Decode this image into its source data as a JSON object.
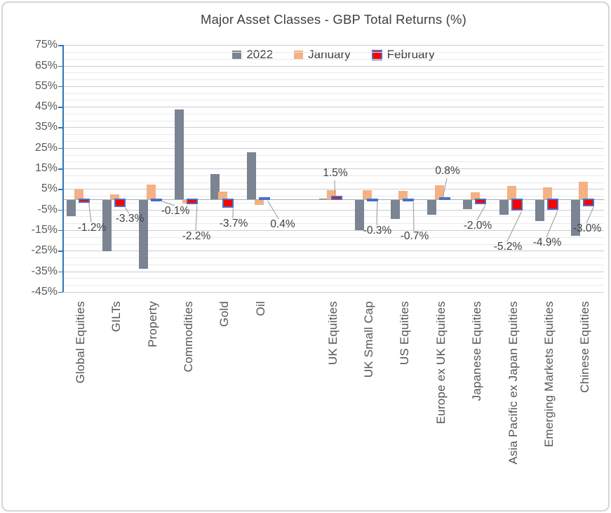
{
  "title": "Major Asset Classes - GBP Total Returns (%)",
  "legend": {
    "items": [
      "2022",
      "January",
      "February"
    ]
  },
  "colors": {
    "series_2022": "#7b8492",
    "series_january": "#f4b183",
    "series_february": "#ff0000",
    "february_border": "#4472c4",
    "axis_line": "#2e75b6",
    "grid_major": "#c9ccd1",
    "grid_minor": "#e9eaec",
    "zero_line": "#a8acb1",
    "leader_line": "#a6a6a6",
    "label_text": "#404040",
    "axis_text": "#595959"
  },
  "chart_data": {
    "type": "bar",
    "title": "Major Asset Classes - GBP Total Returns (%)",
    "categories": [
      "Global Equities",
      "GILTs",
      "Property",
      "Commodities",
      "Gold",
      "Oil",
      "",
      "UK Equities",
      "UK Small Cap",
      "US Equities",
      "Europe ex UK Equities",
      "Japanese Equities",
      "Asia Pacific ex Japan Equities",
      "Emerging Markets Equities",
      "Chinese Equities"
    ],
    "series": [
      {
        "name": "2022",
        "values": [
          -7.8,
          -24.8,
          -33.3,
          43.8,
          12.2,
          23.0,
          null,
          0.3,
          -14.7,
          -9.3,
          -7.3,
          -4.4,
          -7.3,
          -10.1,
          -17.5
        ]
      },
      {
        "name": "January",
        "values": [
          4.7,
          2.4,
          7.3,
          -1.8,
          3.8,
          -2.4,
          null,
          4.3,
          4.6,
          4.0,
          7.0,
          3.5,
          6.5,
          5.7,
          8.6
        ]
      },
      {
        "name": "February",
        "values": [
          -1.2,
          -3.3,
          -0.1,
          -2.2,
          -3.7,
          0.4,
          null,
          1.5,
          -0.3,
          -0.7,
          0.8,
          -2.0,
          -5.2,
          -4.9,
          -3.0
        ]
      }
    ],
    "data_labels": {
      "series": "February",
      "texts": [
        "-1.2%",
        "-3.3%",
        "-0.1%",
        "-2.2%",
        "-3.7%",
        "0.4%",
        null,
        "1.5%",
        "-0.3%",
        "-0.7%",
        "0.8%",
        "-2.0%",
        "-5.2%",
        "-4.9%",
        "-3.0%"
      ]
    },
    "ylim": [
      -45,
      75
    ],
    "ytick_step": 10,
    "ytick_format": "percent",
    "grid": "major+minor",
    "legend_position": "top-inside-center"
  }
}
